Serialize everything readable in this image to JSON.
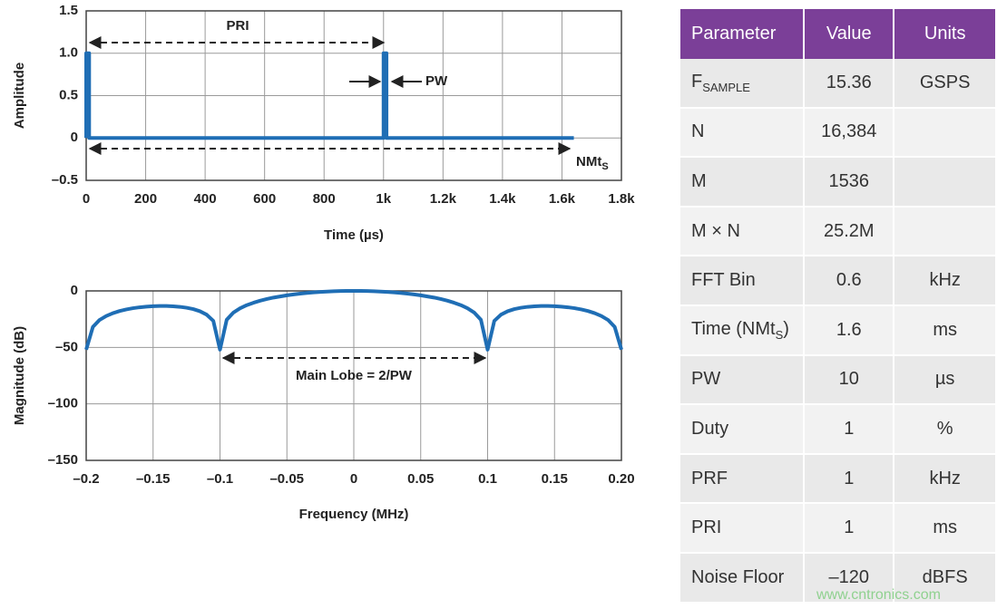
{
  "chart_data": [
    {
      "type": "line",
      "x_label": "Time (µs)",
      "y_label": "Amplitude",
      "color": "#1f6eb5",
      "grid": true,
      "x": [
        0,
        0,
        10,
        10,
        1000,
        1000,
        1010,
        1010,
        1640
      ],
      "values": [
        0,
        1,
        1,
        0,
        0,
        1,
        1,
        0,
        0
      ],
      "xlim": [
        0,
        1800
      ],
      "ylim": [
        -0.5,
        1.5
      ],
      "xticks": [
        0,
        200,
        400,
        600,
        800,
        {
          "value": 1000,
          "label": "1k"
        },
        {
          "value": 1200,
          "label": "1.2k"
        },
        {
          "value": 1400,
          "label": "1.4k"
        },
        {
          "value": 1600,
          "label": "1.6k"
        },
        {
          "value": 1800,
          "label": "1.8k"
        }
      ],
      "yticks": [
        {
          "value": -0.5,
          "label": "–0.5"
        },
        0,
        0.5,
        {
          "value": 1,
          "label": "1.0"
        },
        1.5
      ],
      "annotations": {
        "pri": "PRI",
        "pw": "PW",
        "nmt": "NMt",
        "nmt_sub": "S"
      }
    },
    {
      "type": "line",
      "x_label": "Frequency (MHz)",
      "y_label": "Magnitude (dB)",
      "color": "#1f6eb5",
      "grid": true,
      "x": [
        -0.2,
        -0.195,
        -0.19,
        -0.185,
        -0.18,
        -0.175,
        -0.17,
        -0.165,
        -0.16,
        -0.155,
        -0.15,
        -0.145,
        -0.14,
        -0.135,
        -0.13,
        -0.125,
        -0.12,
        -0.115,
        -0.11,
        -0.105,
        -0.1,
        -0.095,
        -0.09,
        -0.085,
        -0.08,
        -0.075,
        -0.07,
        -0.065,
        -0.06,
        -0.055,
        -0.05,
        -0.045,
        -0.04,
        -0.035,
        -0.03,
        -0.025,
        -0.02,
        -0.015,
        -0.01,
        -0.005,
        0,
        0.005,
        0.01,
        0.015,
        0.02,
        0.025,
        0.03,
        0.035,
        0.04,
        0.045,
        0.05,
        0.055,
        0.06,
        0.065,
        0.07,
        0.075,
        0.08,
        0.085,
        0.09,
        0.095,
        0.1,
        0.105,
        0.11,
        0.115,
        0.12,
        0.125,
        0.13,
        0.135,
        0.14,
        0.145,
        0.15,
        0.155,
        0.16,
        0.165,
        0.17,
        0.175,
        0.18,
        0.185,
        0.19,
        0.195,
        0.2
      ],
      "values": [
        -52,
        -31.9,
        -25.7,
        -22.2,
        -19.7,
        -17.8,
        -16.4,
        -15.3,
        -14.5,
        -13.9,
        -13.5,
        -13.3,
        -13.3,
        -13.6,
        -14.1,
        -14.9,
        -16.1,
        -18.0,
        -21.0,
        -26.5,
        -52,
        -25.6,
        -19.2,
        -15.4,
        -12.6,
        -10.5,
        -8.7,
        -7.2,
        -5.9,
        -4.9,
        -3.9,
        -3.1,
        -2.4,
        -1.8,
        -1.3,
        -0.9,
        -0.6,
        -0.3,
        -0.1,
        0,
        0,
        0,
        -0.1,
        -0.3,
        -0.6,
        -0.9,
        -1.3,
        -1.8,
        -2.4,
        -3.1,
        -3.9,
        -4.9,
        -5.9,
        -7.2,
        -8.7,
        -10.5,
        -12.6,
        -15.4,
        -19.2,
        -25.6,
        -52,
        -26.5,
        -21.0,
        -18.0,
        -16.1,
        -14.9,
        -14.1,
        -13.6,
        -13.3,
        -13.3,
        -13.5,
        -13.9,
        -14.5,
        -15.3,
        -16.4,
        -17.8,
        -19.7,
        -22.2,
        -25.7,
        -31.9,
        -52
      ],
      "xlim": [
        -0.2,
        0.2
      ],
      "ylim": [
        -150,
        0
      ],
      "xticks": [
        {
          "value": -0.2,
          "label": "–0.2"
        },
        {
          "value": -0.15,
          "label": "–0.15"
        },
        {
          "value": -0.1,
          "label": "–0.1"
        },
        {
          "value": -0.05,
          "label": "–0.05"
        },
        0,
        0.05,
        0.1,
        0.15,
        {
          "value": 0.2,
          "label": "0.20"
        }
      ],
      "yticks": [
        {
          "value": -150,
          "label": "–150"
        },
        {
          "value": -100,
          "label": "–100"
        },
        {
          "value": -50,
          "label": "–50"
        },
        0
      ],
      "annotations": {
        "main_lobe": "Main Lobe = 2/PW"
      }
    }
  ],
  "table": {
    "header": [
      "Parameter",
      "Value",
      "Units"
    ],
    "rows": [
      [
        [
          "F",
          "SAMPLE"
        ],
        "15.36",
        "GSPS"
      ],
      [
        "N",
        "16,384",
        null
      ],
      [
        "M",
        "1536",
        null
      ],
      [
        "M × N",
        "25.2M",
        null
      ],
      [
        "FFT Bin",
        "0.6",
        "kHz"
      ],
      [
        [
          "Time (NMt",
          "S",
          ")"
        ],
        "1.6",
        "ms"
      ],
      [
        "PW",
        "10",
        "µs"
      ],
      [
        "Duty",
        "1",
        "%"
      ],
      [
        "PRF",
        "1",
        "kHz"
      ],
      [
        "PRI",
        "1",
        "ms"
      ],
      [
        "Noise Floor",
        "–120",
        "dBFS"
      ]
    ]
  },
  "watermark": "www.cntronics.com"
}
